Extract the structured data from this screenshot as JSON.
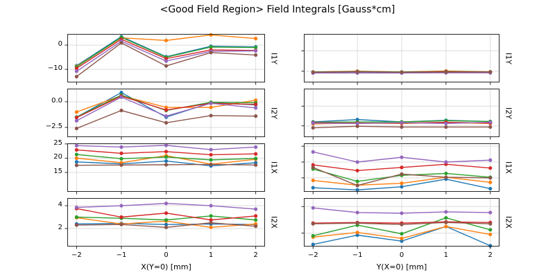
{
  "chart_data": {
    "type": "line",
    "title": "<Good Field Region> Field Integrals [Gauss*cm]",
    "grid": true,
    "legend": false,
    "markers": "circle",
    "x": [
      -2,
      -1,
      0,
      1,
      2
    ],
    "x_tick_labels": [
      "−2",
      "−1",
      "0",
      "1",
      "2"
    ],
    "columns": [
      {
        "xlabel": "X(Y=0) [mm]",
        "subplots": [
          {
            "row_label": "I1Y",
            "ylim": [
              -15.4,
              4.6
            ],
            "yticks": [
              {
                "value": 0,
                "label": "0"
              },
              {
                "value": -10,
                "label": "−10"
              }
            ],
            "series": [
              {
                "name": "blue",
                "color": "#1f77b4",
                "values": [
                  -8.5,
                  3.5,
                  -4.8,
                  -0.5,
                  -0.75
                ]
              },
              {
                "name": "orange",
                "color": "#ff7f0e",
                "values": [
                  -8.8,
                  3.0,
                  1.9,
                  4.2,
                  2.7
                ]
              },
              {
                "name": "green",
                "color": "#2ca02c",
                "values": [
                  -9.0,
                  3.2,
                  -5.0,
                  -0.8,
                  -1.0
                ]
              },
              {
                "name": "red",
                "color": "#d62728",
                "values": [
                  -9.6,
                  2.4,
                  -5.6,
                  -2.0,
                  -2.2
                ]
              },
              {
                "name": "purple",
                "color": "#9467bd",
                "values": [
                  -10.8,
                  1.6,
                  -6.6,
                  -2.6,
                  -2.4
                ]
              },
              {
                "name": "brown",
                "color": "#8c564b",
                "values": [
                  -13.0,
                  0.9,
                  -8.6,
                  -3.1,
                  -4.1
                ]
              }
            ]
          },
          {
            "row_label": "I2Y",
            "ylim": [
              -3.45,
              1.28
            ],
            "yticks": [
              {
                "value": 0,
                "label": "0.0"
              },
              {
                "value": -2.5,
                "label": "−2.5"
              }
            ],
            "series": [
              {
                "name": "blue",
                "color": "#1f77b4",
                "values": [
                  -1.5,
                  0.9,
                  -1.5,
                  -0.1,
                  -0.3
                ]
              },
              {
                "name": "orange",
                "color": "#ff7f0e",
                "values": [
                  -1.0,
                  0.6,
                  -0.55,
                  -0.55,
                  0.15
                ]
              },
              {
                "name": "green",
                "color": "#2ca02c",
                "values": [
                  -1.5,
                  0.65,
                  -0.85,
                  -0.05,
                  -0.1
                ]
              },
              {
                "name": "red",
                "color": "#d62728",
                "values": [
                  -1.55,
                  0.55,
                  -0.8,
                  -0.15,
                  -0.25
                ]
              },
              {
                "name": "purple",
                "color": "#9467bd",
                "values": [
                  -1.85,
                  0.45,
                  -1.4,
                  -0.15,
                  -0.6
                ]
              },
              {
                "name": "brown",
                "color": "#8c564b",
                "values": [
                  -2.6,
                  -0.85,
                  -2.05,
                  -1.35,
                  -1.4
                ]
              }
            ]
          },
          {
            "row_label": "I1X",
            "ylim": [
              8.2,
              25.2
            ],
            "yticks": [
              {
                "value": 25,
                "label": "25"
              },
              {
                "value": 20,
                "label": "20"
              },
              {
                "value": 15,
                "label": "15"
              }
            ],
            "series": [
              {
                "name": "blue",
                "color": "#1f77b4",
                "values": [
                  18.7,
                  18.0,
                  19.0,
                  17.3,
                  18.4
                ]
              },
              {
                "name": "orange",
                "color": "#ff7f0e",
                "values": [
                  20.0,
                  18.4,
                  20.9,
                  17.9,
                  19.6
                ]
              },
              {
                "name": "green",
                "color": "#2ca02c",
                "values": [
                  21.3,
                  19.8,
                  20.4,
                  19.4,
                  19.9
                ]
              },
              {
                "name": "red",
                "color": "#d62728",
                "values": [
                  22.9,
                  21.7,
                  22.3,
                  21.2,
                  21.5
                ]
              },
              {
                "name": "purple",
                "color": "#9467bd",
                "values": [
                  24.4,
                  23.9,
                  24.5,
                  23.0,
                  23.9
                ]
              },
              {
                "name": "brown",
                "color": "#8c564b",
                "values": [
                  17.5,
                  17.6,
                  17.7,
                  17.8,
                  17.6
                ]
              }
            ]
          },
          {
            "row_label": "I2X",
            "ylim": [
              0.42,
              4.67
            ],
            "yticks": [
              {
                "value": 4,
                "label": "4"
              },
              {
                "value": 2,
                "label": "2"
              }
            ],
            "series": [
              {
                "name": "blue",
                "color": "#1f77b4",
                "values": [
                  2.4,
                  2.45,
                  2.35,
                  2.4,
                  2.35
                ]
              },
              {
                "name": "orange",
                "color": "#ff7f0e",
                "values": [
                  2.95,
                  2.4,
                  2.65,
                  2.1,
                  2.4
                ]
              },
              {
                "name": "green",
                "color": "#2ca02c",
                "values": [
                  3.0,
                  2.9,
                  2.75,
                  3.1,
                  2.75
                ]
              },
              {
                "name": "red",
                "color": "#d62728",
                "values": [
                  3.75,
                  3.0,
                  3.35,
                  2.75,
                  3.1
                ]
              },
              {
                "name": "purple",
                "color": "#9467bd",
                "values": [
                  3.85,
                  4.0,
                  4.2,
                  4.0,
                  3.7
                ]
              },
              {
                "name": "brown",
                "color": "#8c564b",
                "values": [
                  2.3,
                  2.35,
                  2.1,
                  2.5,
                  2.2
                ]
              }
            ]
          }
        ]
      },
      {
        "xlabel": "Y(X=0) [mm]",
        "subplots": [
          {
            "row_label": "I1Y",
            "ylim": [
              -15.5,
              8.3
            ],
            "yticks": [
              {
                "value": 0,
                "label": ""
              },
              {
                "value": -10,
                "label": ""
              }
            ],
            "series": [
              {
                "name": "blue",
                "color": "#1f77b4",
                "values": [
                  -10.6,
                  -10.4,
                  -10.6,
                  -10.3,
                  -10.5
                ]
              },
              {
                "name": "orange",
                "color": "#ff7f0e",
                "values": [
                  -10.4,
                  -10.0,
                  -10.4,
                  -9.9,
                  -10.3
                ]
              },
              {
                "name": "green",
                "color": "#2ca02c",
                "values": [
                  -10.4,
                  -10.1,
                  -10.4,
                  -10.1,
                  -10.3
                ]
              },
              {
                "name": "red",
                "color": "#d62728",
                "values": [
                  -10.5,
                  -10.2,
                  -10.5,
                  -10.2,
                  -10.4
                ]
              },
              {
                "name": "purple",
                "color": "#9467bd",
                "values": [
                  -10.9,
                  -10.9,
                  -10.9,
                  -10.8,
                  -10.8
                ]
              },
              {
                "name": "brown",
                "color": "#8c564b",
                "values": [
                  -10.5,
                  -10.3,
                  -10.5,
                  -10.4,
                  -10.4
                ]
              }
            ]
          },
          {
            "row_label": "I2Y",
            "ylim": [
              -3.93,
              2.22
            ],
            "yticks": [
              {
                "value": 0,
                "label": ""
              },
              {
                "value": -2.5,
                "label": ""
              }
            ],
            "series": [
              {
                "name": "blue",
                "color": "#1f77b4",
                "values": [
                  -2.0,
                  -1.7,
                  -2.0,
                  -1.8,
                  -1.95
                ]
              },
              {
                "name": "orange",
                "color": "#ff7f0e",
                "values": [
                  -2.25,
                  -2.15,
                  -2.2,
                  -2.1,
                  -2.2
                ]
              },
              {
                "name": "green",
                "color": "#2ca02c",
                "values": [
                  -2.05,
                  -2.0,
                  -2.0,
                  -1.85,
                  -1.95
                ]
              },
              {
                "name": "red",
                "color": "#d62728",
                "values": [
                  -2.1,
                  -2.15,
                  -2.15,
                  -2.05,
                  -2.15
                ]
              },
              {
                "name": "purple",
                "color": "#9467bd",
                "values": [
                  -2.15,
                  -2.2,
                  -2.1,
                  -2.2,
                  -2.05
                ]
              },
              {
                "name": "brown",
                "color": "#8c564b",
                "values": [
                  -2.75,
                  -2.55,
                  -2.65,
                  -2.65,
                  -2.65
                ]
              }
            ]
          },
          {
            "row_label": "I1X",
            "ylim": [
              10.6,
              25.9
            ],
            "yticks": [
              {
                "value": 25,
                "label": ""
              },
              {
                "value": 20,
                "label": ""
              },
              {
                "value": 15,
                "label": ""
              }
            ],
            "series": [
              {
                "name": "blue",
                "color": "#1f77b4",
                "values": [
                  11.9,
                  11.2,
                  12.2,
                  14.6,
                  11.6
                ]
              },
              {
                "name": "orange",
                "color": "#ff7f0e",
                "values": [
                  14.2,
                  12.7,
                  13.3,
                  15.2,
                  13.6
                ]
              },
              {
                "name": "green",
                "color": "#2ca02c",
                "values": [
                  17.8,
                  13.9,
                  15.8,
                  16.4,
                  15.2
                ]
              },
              {
                "name": "red",
                "color": "#d62728",
                "values": [
                  19.1,
                  17.3,
                  18.3,
                  19.3,
                  18.1
                ]
              },
              {
                "name": "purple",
                "color": "#9467bd",
                "values": [
                  23.2,
                  20.0,
                  21.5,
                  20.0,
                  20.6
                ]
              },
              {
                "name": "brown",
                "color": "#8c564b",
                "values": [
                  18.3,
                  12.6,
                  16.2,
                  15.2,
                  15.0
                ]
              }
            ]
          },
          {
            "row_label": "I2X",
            "ylim": [
              0.99,
              4.64
            ],
            "yticks": [
              {
                "value": 4,
                "label": ""
              },
              {
                "value": 2,
                "label": ""
              }
            ],
            "series": [
              {
                "name": "blue",
                "color": "#1f77b4",
                "values": [
                  1.15,
                  1.85,
                  1.4,
                  2.5,
                  1.05
                ]
              },
              {
                "name": "orange",
                "color": "#ff7f0e",
                "values": [
                  1.7,
                  2.05,
                  1.6,
                  2.5,
                  1.9
                ]
              },
              {
                "name": "green",
                "color": "#2ca02c",
                "values": [
                  1.8,
                  2.6,
                  1.95,
                  3.15,
                  2.25
                ]
              },
              {
                "name": "red",
                "color": "#d62728",
                "values": [
                  2.75,
                  2.8,
                  2.75,
                  2.85,
                  2.8
                ]
              },
              {
                "name": "purple",
                "color": "#9467bd",
                "values": [
                  3.9,
                  3.55,
                  3.5,
                  3.6,
                  3.55
                ]
              },
              {
                "name": "brown",
                "color": "#8c564b",
                "values": [
                  2.7,
                  2.75,
                  2.65,
                  2.8,
                  2.7
                ]
              }
            ]
          }
        ]
      }
    ]
  }
}
